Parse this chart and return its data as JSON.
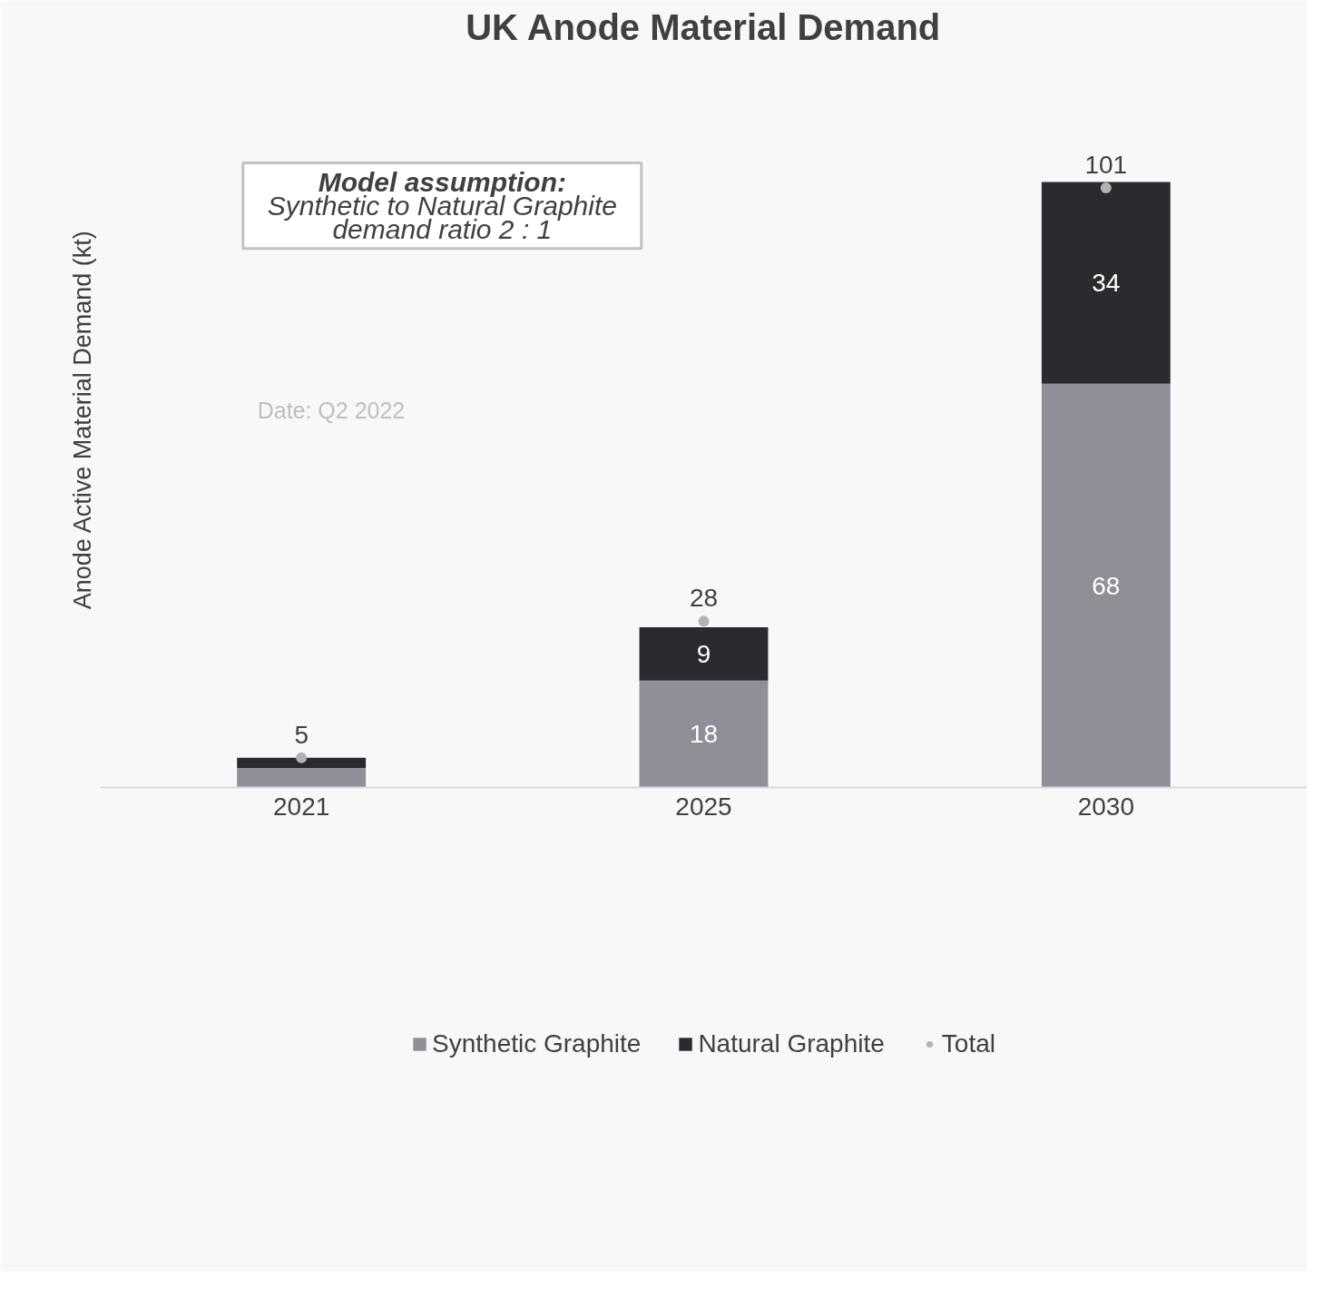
{
  "chart_data": {
    "type": "bar",
    "stacked": true,
    "title": "UK Anode Material Demand",
    "ylabel": "Anode Active Material Demand (kt)",
    "categories": [
      "2021",
      "2025",
      "2030"
    ],
    "series": [
      {
        "name": "Synthetic Graphite",
        "color": "#8f9097",
        "values": [
          3.3,
          18,
          68
        ],
        "value_labels": [
          null,
          "18",
          "68"
        ]
      },
      {
        "name": "Natural Graphite",
        "color": "#2a2b2f",
        "values": [
          1.7,
          9,
          34
        ],
        "value_labels": [
          null,
          "9",
          "34"
        ]
      },
      {
        "name": "Total",
        "type": "scatter",
        "color": "#b3b3b3",
        "values": [
          5,
          28,
          101
        ],
        "value_labels": [
          "5",
          "28",
          "101"
        ]
      }
    ],
    "ylim": [
      0,
      124
    ],
    "tick_labels": "x",
    "grid": false,
    "legend": "bottom",
    "marker": "circle",
    "annotations": [
      "Model assumption:\nSynthetic to Natural Graphite\ndemand ratio 2 : 1",
      "Date: Q2 2022"
    ]
  }
}
